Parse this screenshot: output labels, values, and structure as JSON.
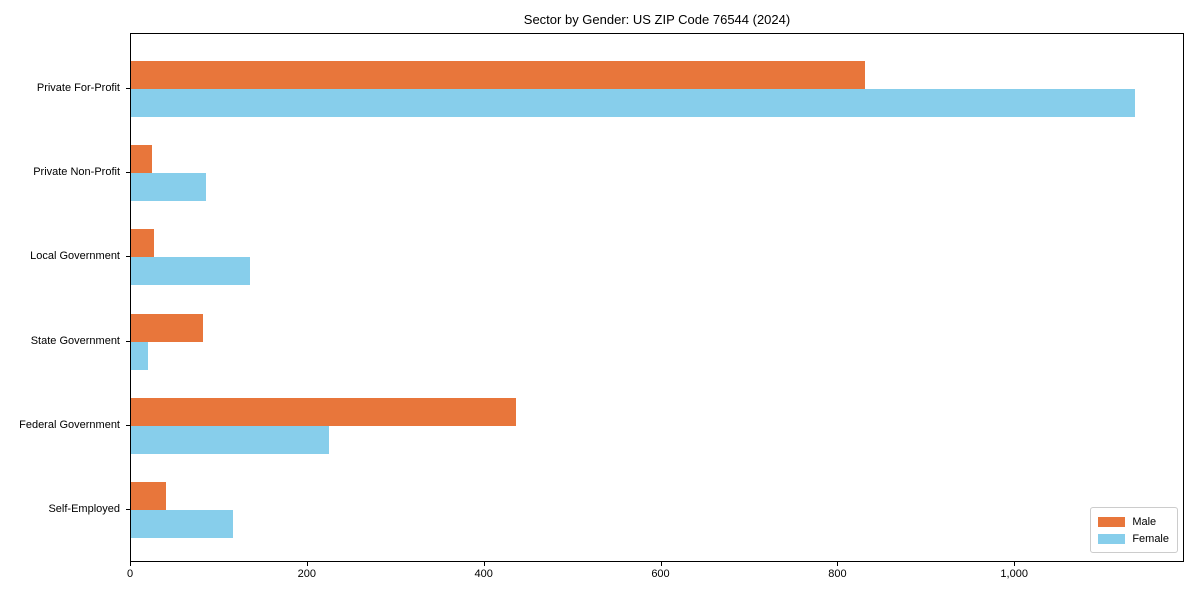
{
  "figure": {
    "title": "Sector by Gender: US ZIP Code 76544 (2024)"
  },
  "chart_data": {
    "type": "bar",
    "orientation": "horizontal",
    "title": "Sector by Gender: US ZIP Code 76544 (2024)",
    "categories": [
      "Private For-Profit",
      "Private Non-Profit",
      "Local Government",
      "State Government",
      "Federal Government",
      "Self-Employed"
    ],
    "series": [
      {
        "name": "Male",
        "color": "#E8763B",
        "values": [
          830,
          24,
          26,
          81,
          435,
          39
        ]
      },
      {
        "name": "Female",
        "color": "#87CEEB",
        "values": [
          1135,
          85,
          135,
          19,
          224,
          115
        ]
      }
    ],
    "xlabel": "",
    "ylabel": "",
    "xlim": [
      0,
      1192
    ],
    "xticks": [
      0,
      200,
      400,
      600,
      800,
      1000
    ],
    "xtick_labels": [
      "0",
      "200",
      "400",
      "600",
      "800",
      "1,000"
    ],
    "grid": false,
    "legend": {
      "position": "lower right",
      "entries": [
        "Male",
        "Female"
      ]
    }
  }
}
